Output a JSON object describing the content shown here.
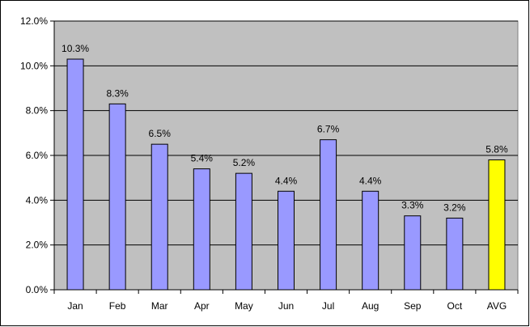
{
  "chart_data": {
    "type": "bar",
    "title": "",
    "xlabel": "",
    "ylabel": "",
    "categories": [
      "Jan",
      "Feb",
      "Mar",
      "Apr",
      "May",
      "Jun",
      "Jul",
      "Aug",
      "Sep",
      "Oct",
      "AVG"
    ],
    "values": [
      10.3,
      8.3,
      6.5,
      5.4,
      5.2,
      4.4,
      6.7,
      4.4,
      3.3,
      3.2,
      5.8
    ],
    "data_labels": [
      "10.3%",
      "8.3%",
      "6.5%",
      "5.4%",
      "5.2%",
      "4.4%",
      "6.7%",
      "4.4%",
      "3.3%",
      "3.2%",
      "5.8%"
    ],
    "ylim": [
      0,
      12
    ],
    "yticks": [
      0,
      2,
      4,
      6,
      8,
      10,
      12
    ],
    "ytick_labels": [
      "0.0%",
      "2.0%",
      "4.0%",
      "6.0%",
      "8.0%",
      "10.0%",
      "12.0%"
    ],
    "grid": true,
    "legend": "none",
    "colors": {
      "plot_background": "#c0c0c0",
      "bar": "#9999ff",
      "highlight_bar": "#ffff00",
      "bar_border": "#000000",
      "gridline": "#000000"
    },
    "highlight_category": "AVG"
  }
}
